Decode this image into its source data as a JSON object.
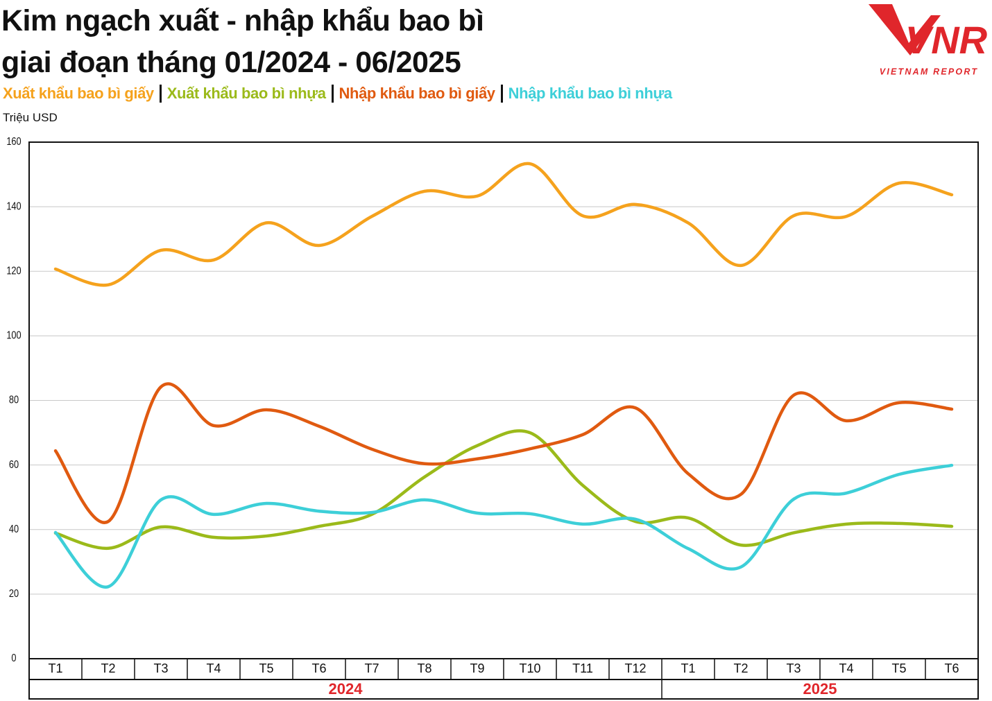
{
  "title_lines": [
    "Kim ngạch xuất - nhập khẩu bao bì",
    "giai đoạn tháng 01/2024 - 06/2025"
  ],
  "logo": {
    "mark": "VNR",
    "text": "VIETNAM REPORT"
  },
  "chart_data": {
    "type": "line",
    "ylabel": "Triệu USD",
    "categories": [
      "T1",
      "T2",
      "T3",
      "T4",
      "T5",
      "T6",
      "T7",
      "T8",
      "T9",
      "T10",
      "T11",
      "T12",
      "T1",
      "T2",
      "T3",
      "T4",
      "T5",
      "T6"
    ],
    "year_groups": [
      {
        "label": "2024",
        "count": 12
      },
      {
        "label": "2025",
        "count": 6
      }
    ],
    "ylim": [
      0,
      160
    ],
    "yticks": [
      0,
      20,
      40,
      60,
      80,
      100,
      120,
      140,
      160
    ],
    "grid": true,
    "smooth": true,
    "series": [
      {
        "name": "Xuất khẩu bao bì giấy",
        "color": "#F5A21D",
        "values": [
          120.7,
          115.8,
          126.5,
          123.5,
          135,
          128,
          137,
          144.8,
          143.3,
          153.3,
          137.2,
          140.7,
          135,
          121.8,
          137.2,
          137,
          147.3,
          143.7
        ]
      },
      {
        "name": "Xuất khẩu bao bì nhựa",
        "color": "#9BBA1A",
        "values": [
          38.9,
          34.2,
          40.8,
          37.6,
          38,
          41,
          44.7,
          56.3,
          66,
          70,
          53.7,
          42.5,
          43.6,
          35.2,
          39,
          41.7,
          41.9,
          41
        ]
      },
      {
        "name": "Nhập khẩu bao bì giấy",
        "color": "#E05A10",
        "values": [
          64.4,
          42.5,
          84.2,
          72.2,
          77.1,
          72,
          64.9,
          60.4,
          61.9,
          65,
          69.4,
          77.7,
          57.3,
          50.9,
          81.6,
          73.7,
          79.3,
          77.3
        ]
      },
      {
        "name": "Nhập khẩu bao bì nhựa",
        "color": "#3DCFD8",
        "values": [
          39.1,
          22.3,
          49.2,
          44.7,
          48.1,
          45.7,
          45.3,
          49.2,
          45.1,
          44.9,
          41.7,
          43.2,
          34.1,
          28.4,
          49.4,
          51.3,
          57.1,
          59.9
        ]
      }
    ]
  }
}
